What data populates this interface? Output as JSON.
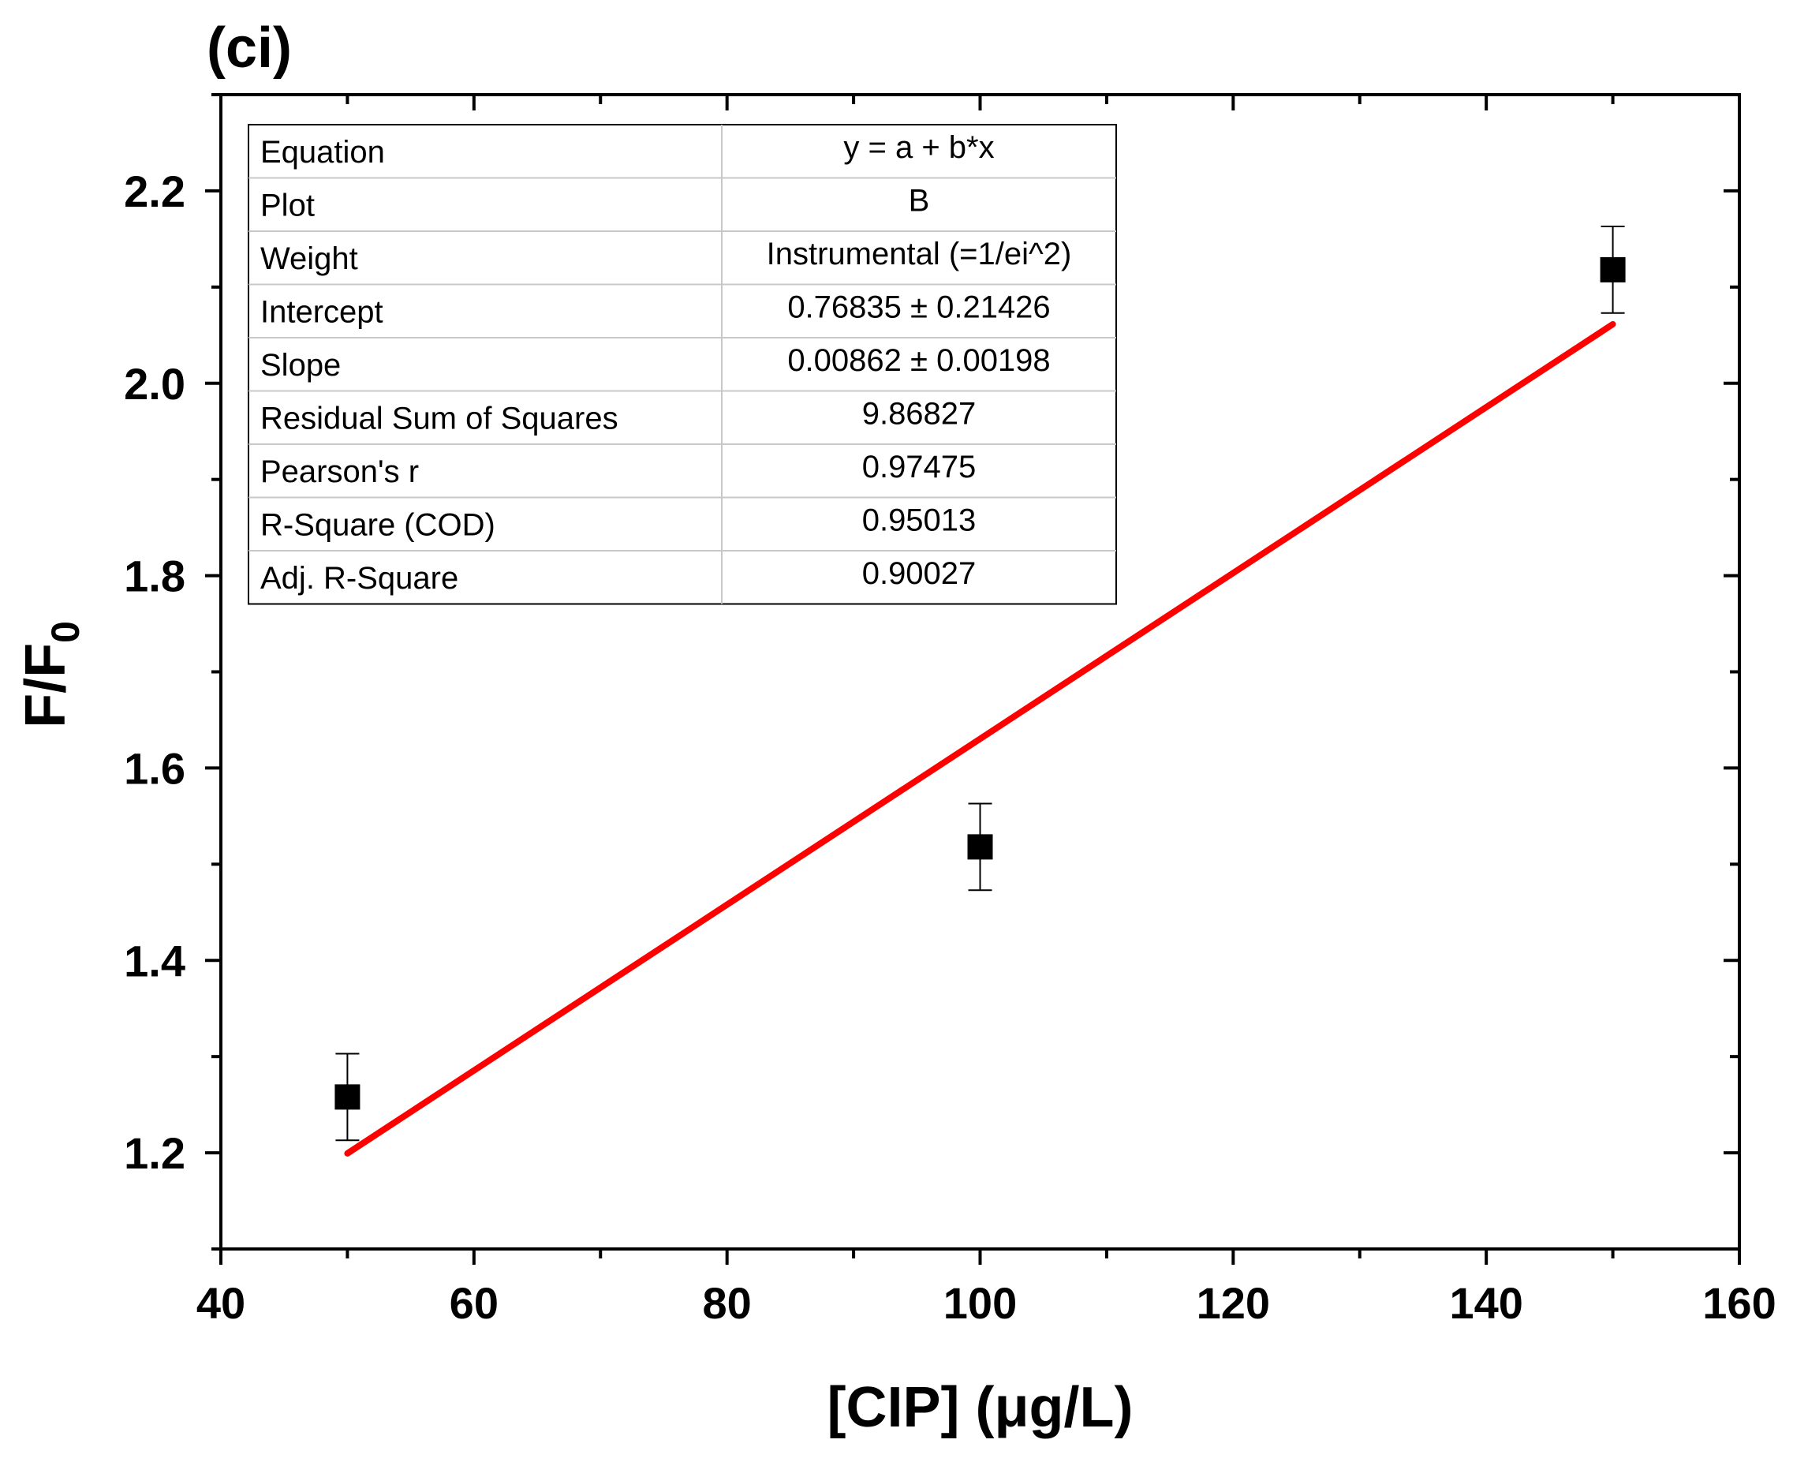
{
  "chart_data": {
    "type": "scatter",
    "panel_label": "(ci)",
    "xlabel": "[CIP] (μg/L)",
    "ylabel_main": "F/F",
    "ylabel_subscript": "0",
    "xlim": [
      40,
      160
    ],
    "ylim": [
      1.1,
      2.3
    ],
    "x_ticks": [
      40,
      60,
      80,
      100,
      120,
      140,
      160
    ],
    "y_ticks": [
      1.2,
      1.4,
      1.6,
      1.8,
      2.0,
      2.2
    ],
    "x_tick_labels": [
      "40",
      "60",
      "80",
      "100",
      "120",
      "140",
      "160"
    ],
    "y_tick_labels": [
      "1.2",
      "1.4",
      "1.6",
      "1.8",
      "2.0",
      "2.2"
    ],
    "series": [
      {
        "name": "B",
        "marker": "square",
        "color": "#000000",
        "points": [
          {
            "x": 50,
            "y": 1.258,
            "err": 0.045
          },
          {
            "x": 100,
            "y": 1.518,
            "err": 0.045
          },
          {
            "x": 150,
            "y": 2.118,
            "err": 0.045
          }
        ]
      }
    ],
    "fit_line": {
      "color": "#ff0000",
      "intercept": 0.76835,
      "slope": 0.00862,
      "x_start": 50,
      "x_end": 150
    },
    "stats_table": [
      {
        "label": "Equation",
        "value": "y = a + b*x"
      },
      {
        "label": "Plot",
        "value": "B"
      },
      {
        "label": "Weight",
        "value": "Instrumental (=1/ei^2)"
      },
      {
        "label": "Intercept",
        "value": "0.76835 ± 0.21426"
      },
      {
        "label": "Slope",
        "value": "0.00862 ± 0.00198"
      },
      {
        "label": "Residual Sum of Squares",
        "value": "9.86827"
      },
      {
        "label": "Pearson's r",
        "value": "0.97475"
      },
      {
        "label": "R-Square (COD)",
        "value": "0.95013"
      },
      {
        "label": "Adj. R-Square",
        "value": "0.90027"
      }
    ]
  }
}
